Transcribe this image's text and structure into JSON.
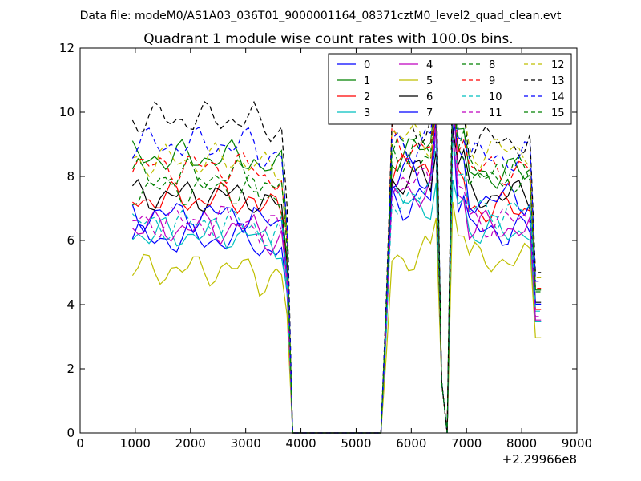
{
  "chart_data": {
    "type": "line",
    "suptitle": "Data file: modeM0/AS1A03_036T01_9000001164_08371cztM0_level2_quad_clean.evt",
    "title": "Quadrant 1 module wise count rates with 100.0s bins.",
    "xlabel": "",
    "ylabel": "",
    "x_offset_label": "+2.29966e8",
    "xlim": [
      0,
      9000
    ],
    "ylim": [
      0,
      12
    ],
    "xticks": [
      0,
      1000,
      2000,
      3000,
      4000,
      5000,
      6000,
      7000,
      8000,
      9000
    ],
    "yticks": [
      0,
      2,
      4,
      6,
      8,
      10,
      12
    ],
    "xtick_labels": [
      "0",
      "1000",
      "2000",
      "3000",
      "4000",
      "5000",
      "6000",
      "7000",
      "8000",
      "9000"
    ],
    "ytick_labels": [
      "0",
      "2",
      "4",
      "6",
      "8",
      "10",
      "12"
    ],
    "grid": false,
    "legend_placement": "top-right",
    "legend_columns": 4,
    "x": [
      950,
      1050,
      1150,
      1250,
      1350,
      1450,
      1550,
      1650,
      1750,
      1850,
      1950,
      2050,
      2150,
      2250,
      2350,
      2450,
      2550,
      2650,
      2750,
      2850,
      2950,
      3050,
      3150,
      3250,
      3350,
      3450,
      3550,
      3650,
      3750,
      3850,
      3950,
      4050,
      4150,
      4250,
      4350,
      4450,
      4550,
      4650,
      4750,
      4850,
      4950,
      5050,
      5150,
      5250,
      5350,
      5450,
      5550,
      5650,
      5750,
      5850,
      5950,
      6050,
      6150,
      6250,
      6350,
      6450,
      6550,
      6650,
      6750,
      6850,
      6950,
      7050,
      7150,
      7250,
      7350,
      7450,
      7550,
      7650,
      7750,
      7850,
      7950,
      8050,
      8150,
      8250,
      8350
    ],
    "series": [
      {
        "name": "0",
        "color": "#0000ff",
        "dash": "solid",
        "base": 6.05,
        "mid": 7.25,
        "late": 6.3,
        "pk1": 9.6,
        "pk2": 9.6
      },
      {
        "name": "1",
        "color": "#008000",
        "dash": "solid",
        "base": 8.6,
        "mid": 8.8,
        "late": 8.1,
        "pk1": 10.7,
        "pk2": 10.6
      },
      {
        "name": "2",
        "color": "#ff0000",
        "dash": "solid",
        "base": 7.3,
        "mid": 8.2,
        "late": 7.0,
        "pk1": 10.3,
        "pk2": 10.5
      },
      {
        "name": "3",
        "color": "#00bfbf",
        "dash": "solid",
        "base": 6.2,
        "mid": 7.2,
        "late": 6.3,
        "pk1": 7.8,
        "pk2": 7.9
      },
      {
        "name": "4",
        "color": "#bf00bf",
        "dash": "solid",
        "base": 6.4,
        "mid": 7.6,
        "late": 6.4,
        "pk1": 9.5,
        "pk2": 9.5
      },
      {
        "name": "5",
        "color": "#bfbf00",
        "dash": "solid",
        "base": 5.1,
        "mid": 5.5,
        "late": 5.4,
        "pk1": 6.7,
        "pk2": 7.2
      },
      {
        "name": "6",
        "color": "#000000",
        "dash": "solid",
        "base": 7.4,
        "mid": 7.9,
        "late": 7.4,
        "pk1": 8.8,
        "pk2": 9.5
      },
      {
        "name": "7",
        "color": "#0000ff",
        "dash": "solid",
        "base": 6.8,
        "mid": 8.0,
        "late": 7.3,
        "pk1": 9.8,
        "pk2": 9.9
      },
      {
        "name": "8",
        "color": "#008000",
        "dash": "dashed",
        "base": 7.6,
        "mid": 8.6,
        "late": 8.0,
        "pk1": 10.3,
        "pk2": 10.4
      },
      {
        "name": "9",
        "color": "#ff0000",
        "dash": "dashed",
        "base": 8.3,
        "mid": 9.0,
        "late": 8.2,
        "pk1": 10.6,
        "pk2": 11.0
      },
      {
        "name": "10",
        "color": "#00bfbf",
        "dash": "dashed",
        "base": 6.5,
        "mid": 7.4,
        "late": 6.9,
        "pk1": 9.0,
        "pk2": 9.2
      },
      {
        "name": "11",
        "color": "#bf00bf",
        "dash": "dashed",
        "base": 6.6,
        "mid": 7.8,
        "late": 6.6,
        "pk1": 9.7,
        "pk2": 10.8
      },
      {
        "name": "12",
        "color": "#bfbf00",
        "dash": "dashed",
        "base": 8.5,
        "mid": 9.2,
        "late": 8.8,
        "pk1": 10.5,
        "pk2": 11.5
      },
      {
        "name": "13",
        "color": "#000000",
        "dash": "dashed",
        "base": 9.8,
        "mid": 9.6,
        "late": 9.1,
        "pk1": 11.2,
        "pk2": 11.7
      },
      {
        "name": "14",
        "color": "#0000ff",
        "dash": "dashed",
        "base": 9.0,
        "mid": 9.0,
        "late": 8.6,
        "pk1": 10.9,
        "pk2": 11.1
      },
      {
        "name": "15",
        "color": "#008000",
        "dash": "dashed",
        "base": 8.0,
        "mid": 8.8,
        "late": 8.1,
        "pk1": 10.4,
        "pk2": 10.9
      }
    ]
  }
}
